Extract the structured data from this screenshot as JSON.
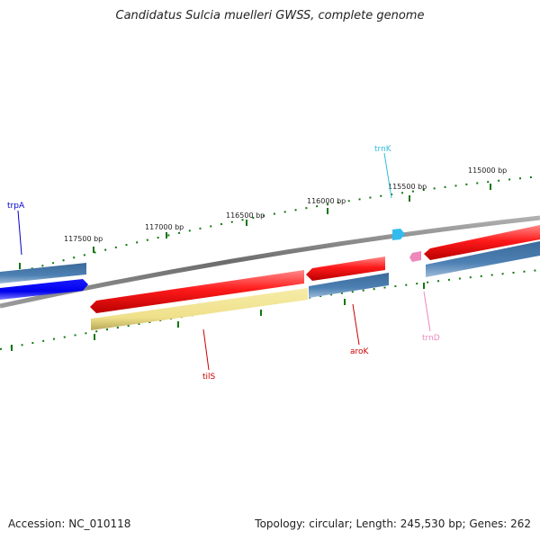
{
  "title": "Candidatus Sulcia muelleri GWSS, complete genome",
  "footer": {
    "accession": "Accession: NC_010118",
    "topology": "Topology: circular; Length: 245,530 bp; Genes: 262"
  },
  "scale_labels": [
    "115000 bp",
    "115500 bp",
    "116000 bp",
    "116500 bp",
    "117000 bp",
    "117500 bp"
  ],
  "genes": [
    {
      "name": "trpA",
      "color": "#0000cc"
    },
    {
      "name": "trnK",
      "color": "#33bbdd"
    },
    {
      "name": "trnD",
      "color": "#ee88bb"
    },
    {
      "name": "aroK",
      "color": "#cc0000"
    },
    {
      "name": "tilS",
      "color": "#cc0000"
    }
  ],
  "colors": {
    "backbone": "#777777",
    "cds": "#ee1111",
    "cds_highlight": "#ff7777",
    "steelblue": "#4477aa",
    "steelblue_highlight": "#88aacc",
    "trpA_fill": "#0000ee",
    "tilS_fill": "#f3e79a",
    "tick": "#117711"
  }
}
